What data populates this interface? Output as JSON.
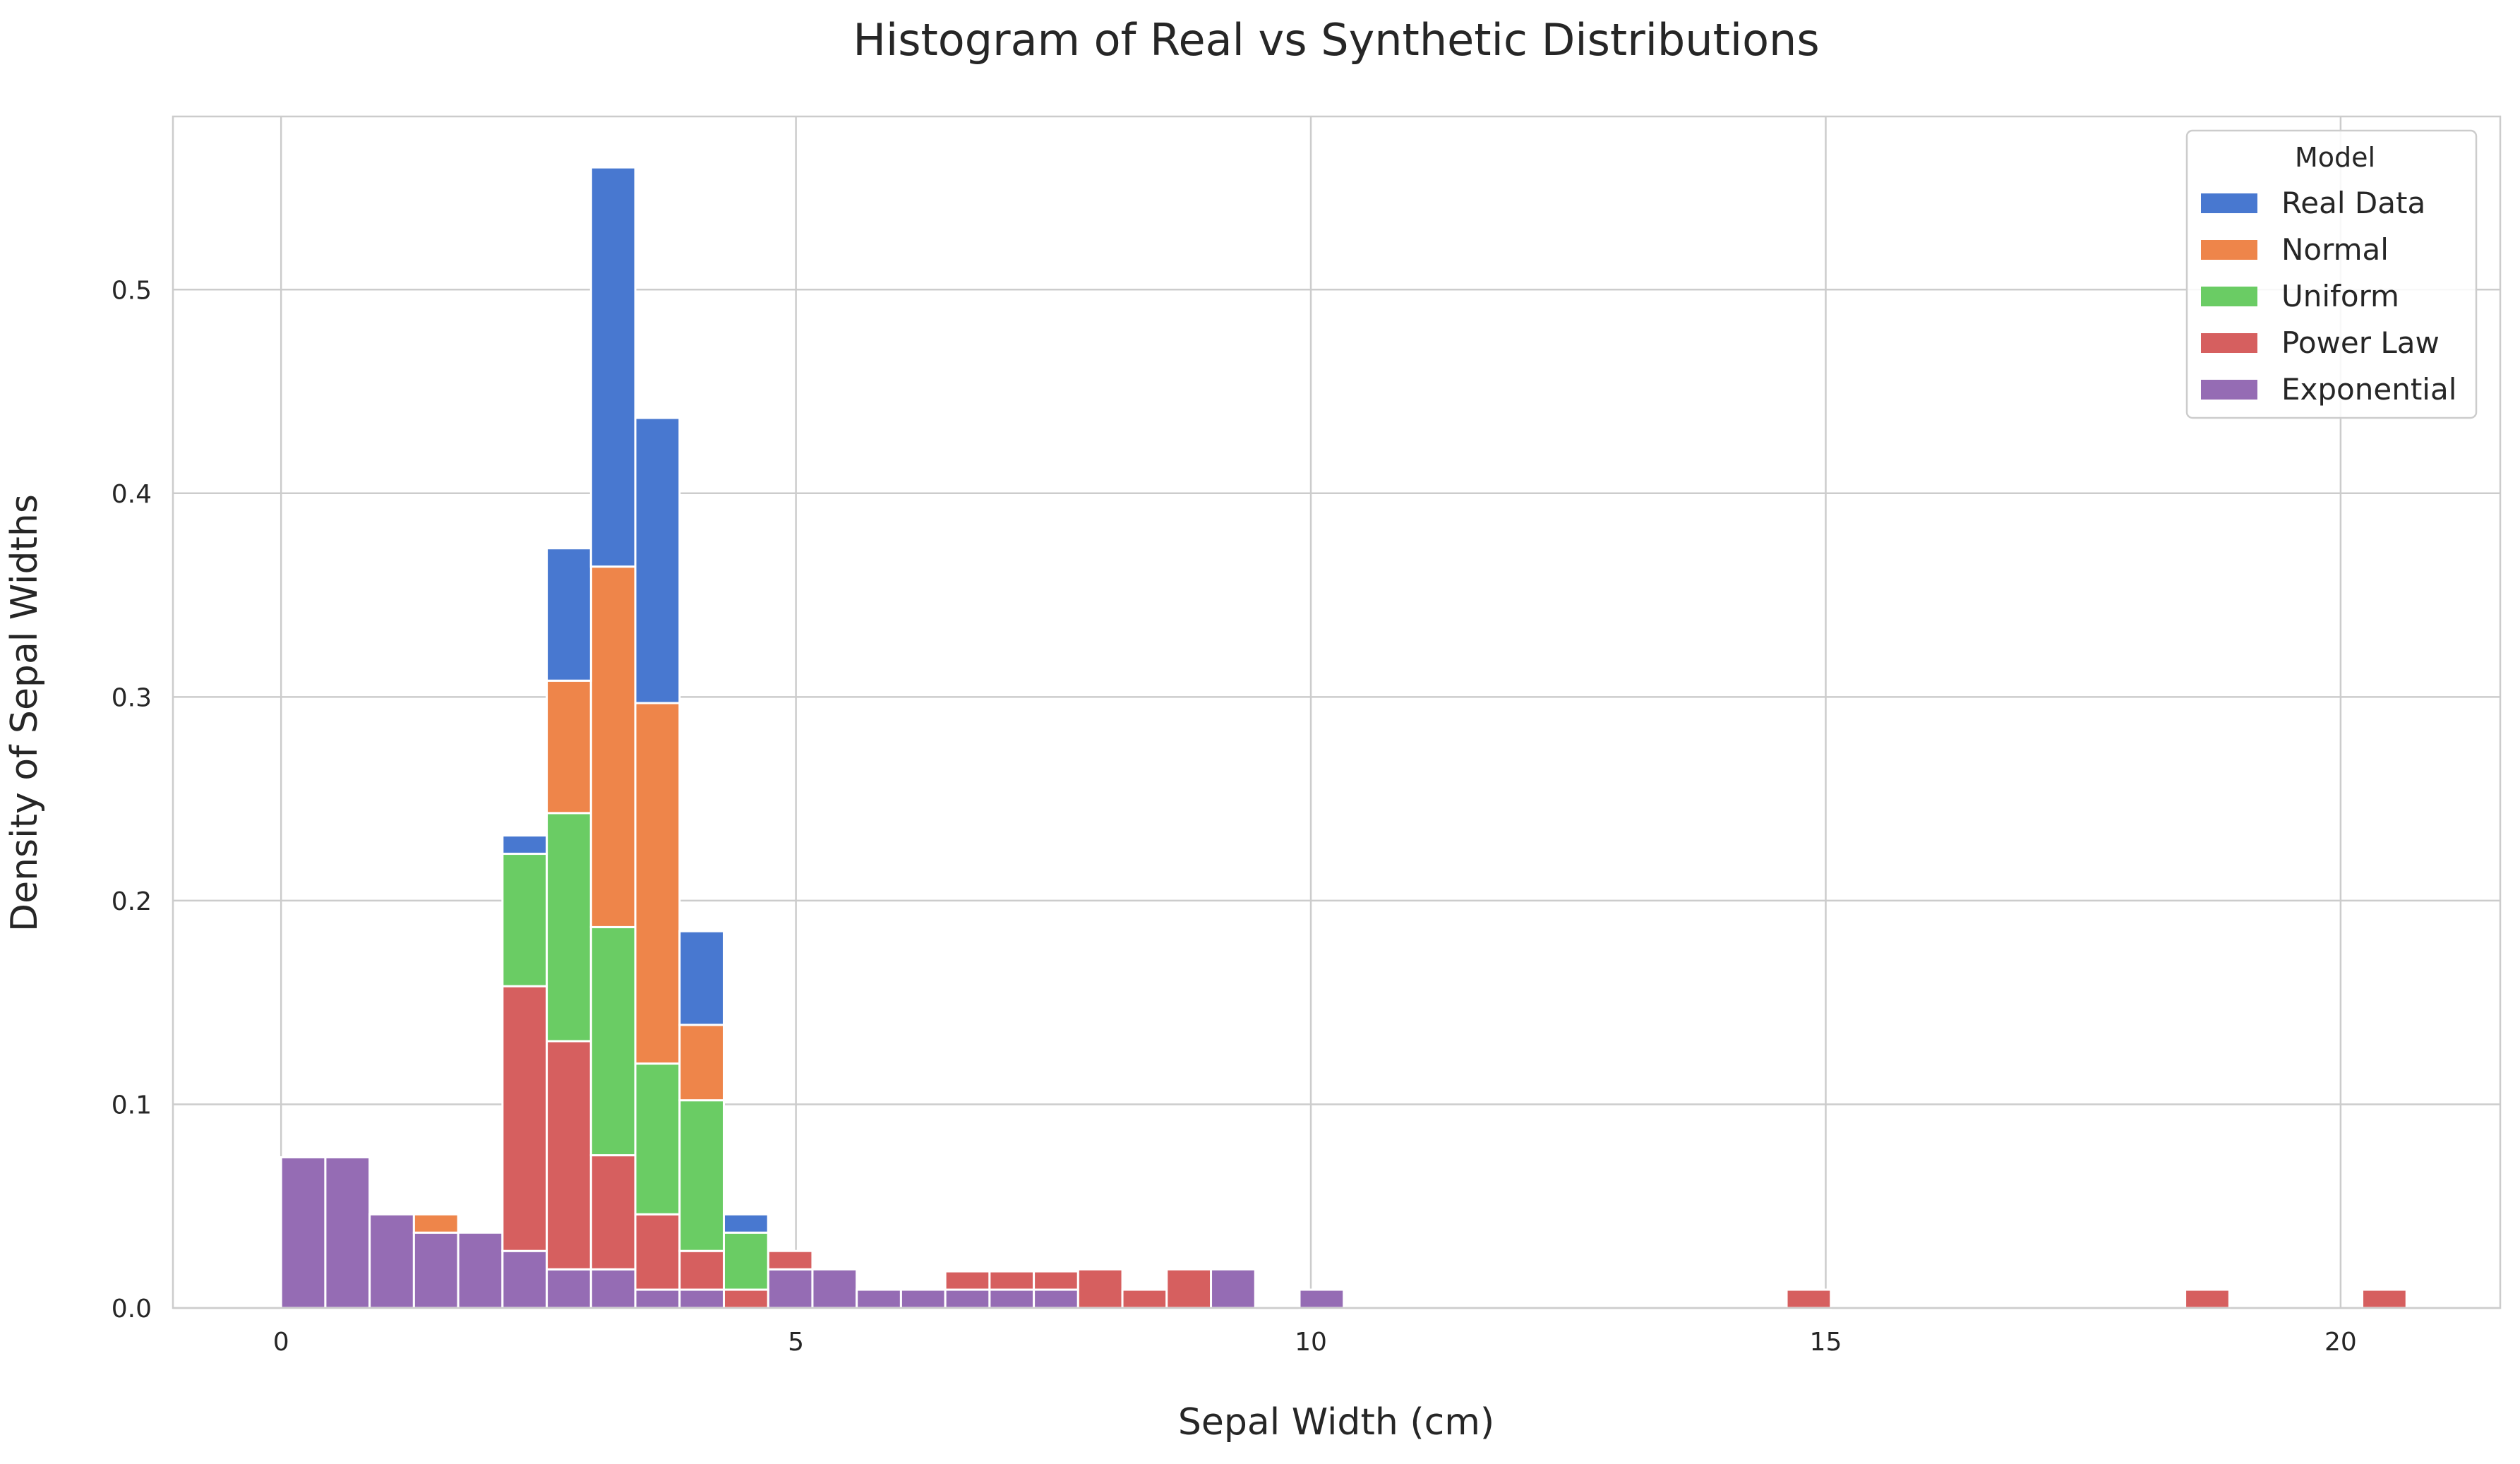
{
  "chart_data": {
    "type": "bar",
    "stacked": true,
    "histogram": true,
    "title": "Histogram of Real vs Synthetic Distributions",
    "xlabel": "Sepal Width (cm)",
    "ylabel": "Density of Sepal Widths",
    "xlim": [
      -1.05,
      21.55
    ],
    "ylim": [
      0,
      0.585
    ],
    "x_ticks": [
      0,
      5,
      10,
      15,
      20
    ],
    "y_ticks": [
      0.0,
      0.1,
      0.2,
      0.3,
      0.4,
      0.5
    ],
    "x_tick_labels": [
      "0",
      "5",
      "10",
      "15",
      "20"
    ],
    "y_tick_labels": [
      "0.0",
      "0.1",
      "0.2",
      "0.3",
      "0.4",
      "0.5"
    ],
    "grid": true,
    "legend": {
      "title": "Model",
      "position": "top-right"
    },
    "bin_width": 0.43,
    "bins": [
      0.0,
      0.43,
      0.86,
      1.29,
      1.72,
      2.15,
      2.58,
      3.01,
      3.44,
      3.87,
      4.3,
      4.73,
      5.16,
      5.59,
      6.02,
      6.45,
      6.88,
      7.31,
      7.74,
      8.17,
      8.6,
      9.03,
      9.46,
      9.89,
      14.62,
      18.49,
      20.21
    ],
    "series": [
      {
        "name": "Exponential",
        "color": "#956cb4",
        "values": [
          0.074,
          0.074,
          0.046,
          0.037,
          0.037,
          0.028,
          0.019,
          0.019,
          0.009,
          0.009,
          0.0,
          0.019,
          0.019,
          0.009,
          0.009,
          0.009,
          0.009,
          0.009,
          0.0,
          0.0,
          0.0,
          0.019,
          0.0,
          0.009,
          0.0,
          0.0,
          0.0
        ]
      },
      {
        "name": "Power Law",
        "color": "#d65f5f",
        "values": [
          0.0,
          0.0,
          0.0,
          0.0,
          0.0,
          0.13,
          0.112,
          0.056,
          0.037,
          0.019,
          0.009,
          0.009,
          0.0,
          0.0,
          0.0,
          0.009,
          0.009,
          0.009,
          0.019,
          0.009,
          0.019,
          0.0,
          0.0,
          0.0,
          0.009,
          0.009,
          0.009
        ]
      },
      {
        "name": "Uniform",
        "color": "#6acc64",
        "values": [
          0.0,
          0.0,
          0.0,
          0.0,
          0.0,
          0.065,
          0.112,
          0.112,
          0.074,
          0.074,
          0.028,
          0.0,
          0.0,
          0.0,
          0.0,
          0.0,
          0.0,
          0.0,
          0.0,
          0.0,
          0.0,
          0.0,
          0.0,
          0.0,
          0.0,
          0.0,
          0.0
        ]
      },
      {
        "name": "Normal",
        "color": "#ee854a",
        "values": [
          0.0,
          0.0,
          0.0,
          0.009,
          0.0,
          0.0,
          0.065,
          0.177,
          0.177,
          0.037,
          0.0,
          0.0,
          0.0,
          0.0,
          0.0,
          0.0,
          0.0,
          0.0,
          0.0,
          0.0,
          0.0,
          0.0,
          0.0,
          0.0,
          0.0,
          0.0,
          0.0
        ]
      },
      {
        "name": "Real Data",
        "color": "#4878d0",
        "values": [
          0.0,
          0.0,
          0.0,
          0.0,
          0.0,
          0.009,
          0.065,
          0.196,
          0.14,
          0.046,
          0.009,
          0.0,
          0.0,
          0.0,
          0.0,
          0.0,
          0.0,
          0.0,
          0.0,
          0.0,
          0.0,
          0.0,
          0.0,
          0.0,
          0.0,
          0.0,
          0.0
        ]
      }
    ],
    "legend_order": [
      "Real Data",
      "Normal",
      "Uniform",
      "Power Law",
      "Exponential"
    ]
  }
}
